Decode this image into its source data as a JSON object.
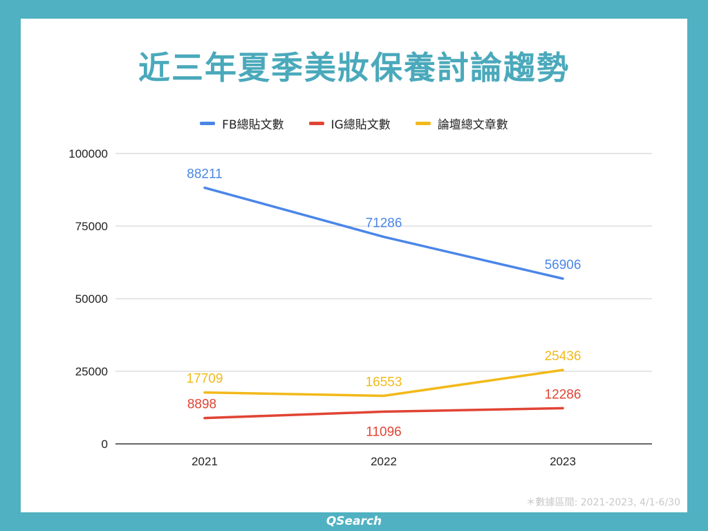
{
  "title": "近三年夏季美妝保養討論趨勢",
  "footnote": "＊數據區間: 2021-2023, 4/1-6/30",
  "brand": "QSearch",
  "chart_data": {
    "type": "line",
    "categories": [
      "2021",
      "2022",
      "2023"
    ],
    "ylim": [
      0,
      100000
    ],
    "yticks": [
      0,
      25000,
      50000,
      75000,
      100000
    ],
    "grid": true,
    "legend_position": "top",
    "series": [
      {
        "name": "FB總貼文數",
        "color": "#4a86e8",
        "values": [
          88211,
          71286,
          56906
        ],
        "label_position": "above"
      },
      {
        "name": "IG總貼文數",
        "color": "#e04434",
        "values": [
          8898,
          11096,
          12286
        ],
        "label_position": "mixed"
      },
      {
        "name": "論壇總文章數",
        "color": "#f2b91a",
        "values": [
          17709,
          16553,
          25436
        ],
        "label_position": "above"
      }
    ]
  }
}
